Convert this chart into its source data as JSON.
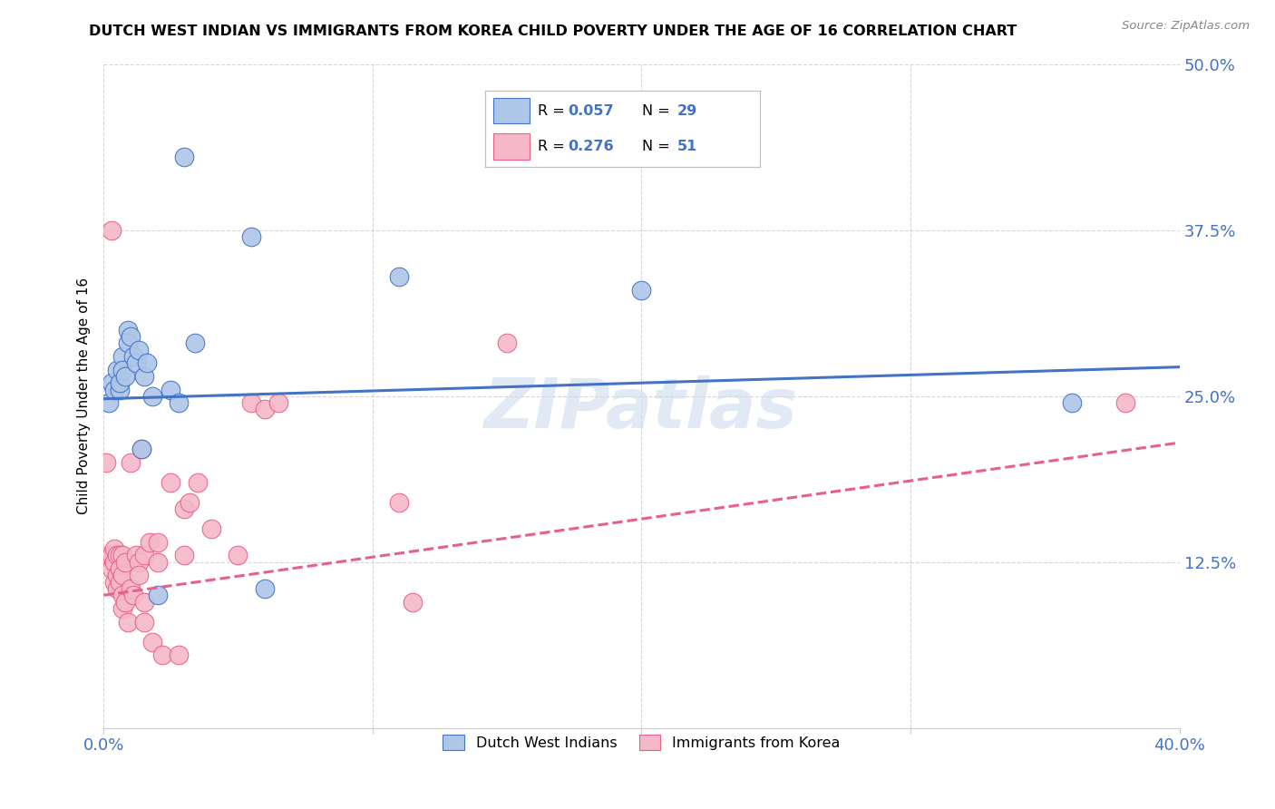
{
  "title": "DUTCH WEST INDIAN VS IMMIGRANTS FROM KOREA CHILD POVERTY UNDER THE AGE OF 16 CORRELATION CHART",
  "source": "Source: ZipAtlas.com",
  "ylabel": "Child Poverty Under the Age of 16",
  "xlim": [
    0.0,
    0.4
  ],
  "ylim": [
    0.0,
    0.5
  ],
  "xticks": [
    0.0,
    0.1,
    0.2,
    0.3,
    0.4
  ],
  "xticklabels": [
    "0.0%",
    "",
    "",
    "",
    "40.0%"
  ],
  "yticks": [
    0.0,
    0.125,
    0.25,
    0.375,
    0.5
  ],
  "yticklabels": [
    "",
    "12.5%",
    "25.0%",
    "37.5%",
    "50.0%"
  ],
  "legend1_label": "Dutch West Indians",
  "legend2_label": "Immigrants from Korea",
  "R1": "0.057",
  "N1": "29",
  "R2": "0.276",
  "N2": "51",
  "blue_color": "#aec6e8",
  "pink_color": "#f5b8c8",
  "blue_line_color": "#4472c4",
  "pink_line_color": "#e8608a",
  "blue_scatter": [
    [
      0.002,
      0.245
    ],
    [
      0.003,
      0.26
    ],
    [
      0.004,
      0.255
    ],
    [
      0.005,
      0.27
    ],
    [
      0.006,
      0.255
    ],
    [
      0.006,
      0.26
    ],
    [
      0.007,
      0.28
    ],
    [
      0.007,
      0.27
    ],
    [
      0.008,
      0.265
    ],
    [
      0.009,
      0.3
    ],
    [
      0.009,
      0.29
    ],
    [
      0.01,
      0.295
    ],
    [
      0.011,
      0.28
    ],
    [
      0.012,
      0.275
    ],
    [
      0.013,
      0.285
    ],
    [
      0.014,
      0.21
    ],
    [
      0.015,
      0.265
    ],
    [
      0.016,
      0.275
    ],
    [
      0.018,
      0.25
    ],
    [
      0.02,
      0.1
    ],
    [
      0.025,
      0.255
    ],
    [
      0.028,
      0.245
    ],
    [
      0.03,
      0.43
    ],
    [
      0.034,
      0.29
    ],
    [
      0.055,
      0.37
    ],
    [
      0.06,
      0.105
    ],
    [
      0.11,
      0.34
    ],
    [
      0.2,
      0.33
    ],
    [
      0.36,
      0.245
    ]
  ],
  "pink_scatter": [
    [
      0.001,
      0.2
    ],
    [
      0.002,
      0.13
    ],
    [
      0.003,
      0.375
    ],
    [
      0.003,
      0.13
    ],
    [
      0.003,
      0.12
    ],
    [
      0.004,
      0.135
    ],
    [
      0.004,
      0.125
    ],
    [
      0.004,
      0.11
    ],
    [
      0.005,
      0.13
    ],
    [
      0.005,
      0.115
    ],
    [
      0.005,
      0.105
    ],
    [
      0.006,
      0.13
    ],
    [
      0.006,
      0.12
    ],
    [
      0.006,
      0.11
    ],
    [
      0.007,
      0.13
    ],
    [
      0.007,
      0.115
    ],
    [
      0.007,
      0.1
    ],
    [
      0.007,
      0.09
    ],
    [
      0.008,
      0.125
    ],
    [
      0.008,
      0.095
    ],
    [
      0.009,
      0.08
    ],
    [
      0.01,
      0.2
    ],
    [
      0.01,
      0.105
    ],
    [
      0.011,
      0.1
    ],
    [
      0.012,
      0.13
    ],
    [
      0.013,
      0.125
    ],
    [
      0.013,
      0.115
    ],
    [
      0.014,
      0.21
    ],
    [
      0.015,
      0.13
    ],
    [
      0.015,
      0.095
    ],
    [
      0.015,
      0.08
    ],
    [
      0.017,
      0.14
    ],
    [
      0.018,
      0.065
    ],
    [
      0.02,
      0.14
    ],
    [
      0.02,
      0.125
    ],
    [
      0.022,
      0.055
    ],
    [
      0.025,
      0.185
    ],
    [
      0.028,
      0.055
    ],
    [
      0.03,
      0.165
    ],
    [
      0.03,
      0.13
    ],
    [
      0.032,
      0.17
    ],
    [
      0.035,
      0.185
    ],
    [
      0.04,
      0.15
    ],
    [
      0.05,
      0.13
    ],
    [
      0.055,
      0.245
    ],
    [
      0.06,
      0.24
    ],
    [
      0.065,
      0.245
    ],
    [
      0.11,
      0.17
    ],
    [
      0.115,
      0.095
    ],
    [
      0.15,
      0.29
    ],
    [
      0.38,
      0.245
    ]
  ],
  "blue_line_x": [
    0.0,
    0.4
  ],
  "blue_line_y": [
    0.248,
    0.272
  ],
  "pink_line_x": [
    0.0,
    0.4
  ],
  "pink_line_y": [
    0.1,
    0.215
  ],
  "watermark": "ZIPatlas"
}
